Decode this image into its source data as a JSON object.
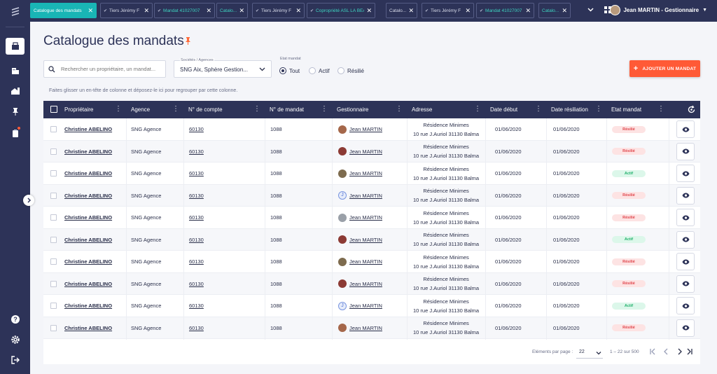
{
  "tabs": [
    {
      "label": "Catalogue des mandats",
      "active": true,
      "check": false,
      "green": false
    },
    {
      "label": "Tiers Jérémy F",
      "active": false,
      "check": true,
      "green": false
    },
    {
      "label": "Mandat 41027007",
      "active": false,
      "check": true,
      "green": true
    },
    {
      "label": "Catalo...",
      "active": false,
      "check": false,
      "green": true
    },
    {
      "label": "Tiers Jérémy F",
      "active": false,
      "check": true,
      "green": false
    },
    {
      "label": "Copropriété ASL LA BEAULE",
      "active": false,
      "check": true,
      "green": true
    },
    {
      "label": "Catalo...",
      "active": false,
      "check": false,
      "green": false
    },
    {
      "label": "Tiers Jérémy F",
      "active": false,
      "check": true,
      "green": false
    },
    {
      "label": "Mandat 41027007",
      "active": false,
      "check": true,
      "green": true
    },
    {
      "label": "Catalo...",
      "active": false,
      "check": false,
      "green": true
    }
  ],
  "user": {
    "name": "Jean MARTIN - Gestionnaire"
  },
  "page": {
    "title": "Catalogue des mandats",
    "group_hint": "Faites glisser un en-tête de colonne et déposez-le ici pour regrouper par cette colonne."
  },
  "filters": {
    "search_placeholder": "Rechercher un propriétaire, un mandat...",
    "societes_label": "Sociétés / Agences",
    "societes_value": "SNG Aix, Sphère Gestion...",
    "etat_label": "Etat mandat",
    "etat_options": [
      "Tout",
      "Actif",
      "Résilié"
    ]
  },
  "add_button": {
    "label": "AJOUTER UN MANDAT"
  },
  "columns": [
    "Propriétaire",
    "Agence",
    "N° de compte",
    "N° de mandat",
    "Gestionnaire",
    "Adresse",
    "Date début",
    "Date résiliation",
    "Etat mandat"
  ],
  "rows": [
    {
      "owner": "Christine ABELINO",
      "agence": "SNG Agence",
      "compte": "60130",
      "mandat": "1088",
      "gest": "Jean MARTIN",
      "avatar": "photo1",
      "adr1": "Résidence Minimes",
      "adr2": "10 rue J.Auriol 31130 Balma",
      "debut": "01/06/2020",
      "resil": "01/06/2020",
      "etat": "Résilié"
    },
    {
      "owner": "Christine ABELINO",
      "agence": "SNG Agence",
      "compte": "60130",
      "mandat": "1088",
      "gest": "Jean MARTIN",
      "avatar": "photo2",
      "adr1": "Résidence Minimes",
      "adr2": "10 rue J.Auriol 31130 Balma",
      "debut": "01/06/2020",
      "resil": "01/06/2020",
      "etat": "Résilié"
    },
    {
      "owner": "Christine ABELINO",
      "agence": "SNG Agence",
      "compte": "60130",
      "mandat": "1088",
      "gest": "Jean MARTIN",
      "avatar": "photo3",
      "adr1": "Résidence Minimes",
      "adr2": "10 rue J.Auriol 31130 Balma",
      "debut": "01/06/2020",
      "resil": "01/06/2020",
      "etat": "Actif"
    },
    {
      "owner": "Christine ABELINO",
      "agence": "SNG Agence",
      "compte": "60130",
      "mandat": "1088",
      "gest": "Jean MARTIN",
      "avatar": "J",
      "adr1": "Résidence Minimes",
      "adr2": "10 rue J.Auriol 31130 Balma",
      "debut": "01/06/2020",
      "resil": "01/06/2020",
      "etat": "Résilié"
    },
    {
      "owner": "Christine ABELINO",
      "agence": "SNG Agence",
      "compte": "60130",
      "mandat": "1088",
      "gest": "Jean MARTIN",
      "avatar": "photo4",
      "adr1": "Résidence Minimes",
      "adr2": "10 rue J.Auriol 31130 Balma",
      "debut": "01/06/2020",
      "resil": "01/06/2020",
      "etat": "Résilié"
    },
    {
      "owner": "Christine ABELINO",
      "agence": "SNG Agence",
      "compte": "60130",
      "mandat": "1088",
      "gest": "Jean MARTIN",
      "avatar": "photo2",
      "adr1": "Résidence Minimes",
      "adr2": "10 rue J.Auriol 31130 Balma",
      "debut": "01/06/2020",
      "resil": "01/06/2020",
      "etat": "Actif"
    },
    {
      "owner": "Christine ABELINO",
      "agence": "SNG Agence",
      "compte": "60130",
      "mandat": "1088",
      "gest": "Jean MARTIN",
      "avatar": "photo3",
      "adr1": "Résidence Minimes",
      "adr2": "10 rue J.Auriol 31130 Balma",
      "debut": "01/06/2020",
      "resil": "01/06/2020",
      "etat": "Résilié"
    },
    {
      "owner": "Christine ABELINO",
      "agence": "SNG Agence",
      "compte": "60130",
      "mandat": "1088",
      "gest": "Jean MARTIN",
      "avatar": "photo2",
      "adr1": "Résidence Minimes",
      "adr2": "10 rue J.Auriol 31130 Balma",
      "debut": "01/06/2020",
      "resil": "01/06/2020",
      "etat": "Résilié"
    },
    {
      "owner": "Christine ABELINO",
      "agence": "SNG Agence",
      "compte": "60130",
      "mandat": "1088",
      "gest": "Jean MARTIN",
      "avatar": "J",
      "adr1": "Résidence Minimes",
      "adr2": "10 rue J.Auriol 31130 Balma",
      "debut": "01/06/2020",
      "resil": "01/06/2020",
      "etat": "Actif"
    },
    {
      "owner": "Christine ABELINO",
      "agence": "SNG Agence",
      "compte": "60130",
      "mandat": "1088",
      "gest": "Jean MARTIN",
      "avatar": "photo1",
      "adr1": "Résidence Minimes",
      "adr2": "10 rue J.Auriol 31130 Balma",
      "debut": "01/06/2020",
      "resil": "01/06/2020",
      "etat": "Résilié"
    }
  ],
  "pagination": {
    "per_page_label": "Eléments par page :",
    "per_page_value": "22",
    "range": "1 – 22 sur 500"
  },
  "colors": {
    "navy": "#2d3358",
    "accent": "#ff5a36",
    "teal": "#19b5b5",
    "resilie": "#e0464c",
    "actif": "#21b06b"
  }
}
